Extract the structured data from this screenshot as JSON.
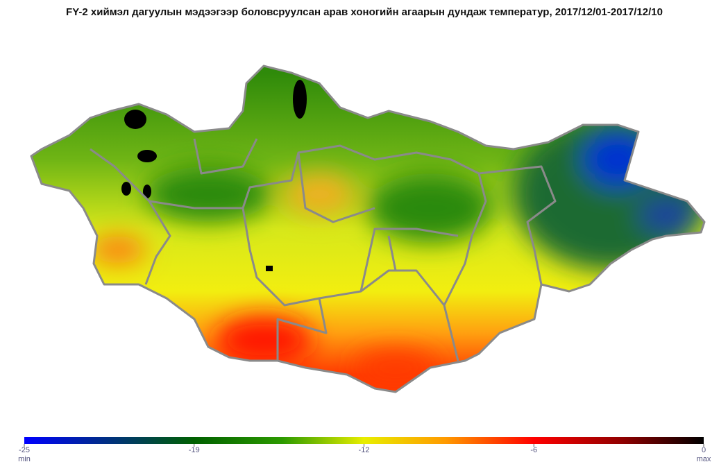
{
  "title": "FY-2 хиймэл дагуулын мэдээгээр боловсруулсан арав хоногийн агаарын дундаж температур, 2017/12/01-2017/12/10",
  "colorbar": {
    "lim": [
      -25,
      0
    ],
    "ticks": [
      -25,
      {
        "value": -18.75,
        "label": "-19"
      },
      {
        "value": -12.5,
        "label": "-12"
      },
      {
        "value": -6.25,
        "label": "-6"
      },
      0
    ],
    "min_label": "min",
    "max_label": "max"
  }
}
